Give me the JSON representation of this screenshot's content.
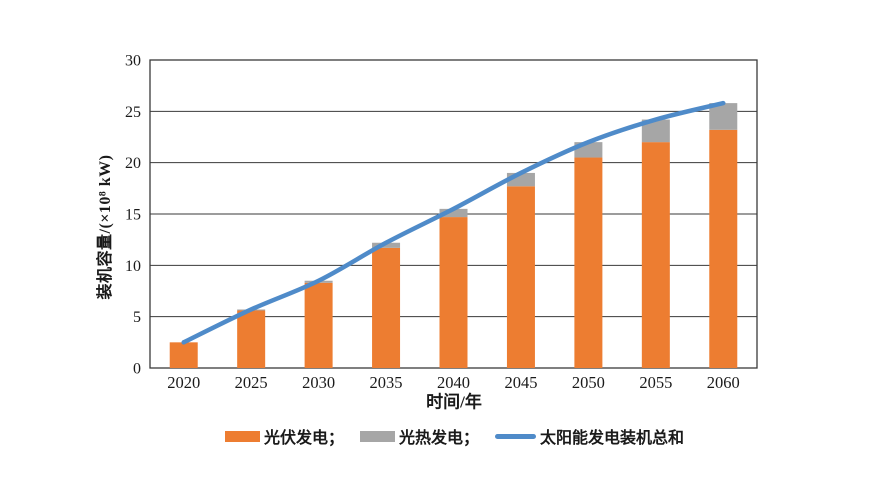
{
  "chart_data": {
    "type": "bar",
    "subtype": "stacked-bars-with-total-line",
    "categories": [
      "2020",
      "2025",
      "2030",
      "2035",
      "2040",
      "2045",
      "2050",
      "2055",
      "2060"
    ],
    "series": [
      {
        "name": "光伏发电",
        "type": "bar",
        "color": "#ED7D31",
        "values": [
          2.5,
          5.6,
          8.3,
          11.7,
          14.7,
          17.7,
          20.5,
          22.0,
          23.2
        ]
      },
      {
        "name": "光热发电",
        "type": "bar",
        "color": "#A6A6A6",
        "values": [
          0,
          0.1,
          0.2,
          0.5,
          0.8,
          1.3,
          1.5,
          2.2,
          2.6
        ]
      },
      {
        "name": "太阳能发电装机总和",
        "type": "line",
        "color": "#4F8BC9",
        "values": [
          2.5,
          5.7,
          8.5,
          12.2,
          15.5,
          19.0,
          22.0,
          24.2,
          25.8
        ]
      }
    ],
    "stacked": true,
    "title": "",
    "xlabel": "时间/年",
    "ylabel": "装机容量/(×10⁸ kW)",
    "ylim": [
      0,
      30
    ],
    "ytick_step": 5,
    "y_ticks": [
      "0",
      "5",
      "10",
      "15",
      "20",
      "25",
      "30"
    ],
    "grid": "horizontal-gridlines-on",
    "legend_position": "bottom"
  },
  "legend": {
    "items": [
      {
        "label": "光伏发电；",
        "swatch": "bar",
        "color": "#ED7D31"
      },
      {
        "label": "光热发电；",
        "swatch": "bar",
        "color": "#A6A6A6"
      },
      {
        "label": "太阳能发电装机总和",
        "swatch": "line",
        "color": "#4F8BC9"
      }
    ]
  },
  "style": {
    "axis_color": "#3a3a3a",
    "tick_text_color": "#1a1a1a",
    "plot_background": "#ffffff"
  }
}
